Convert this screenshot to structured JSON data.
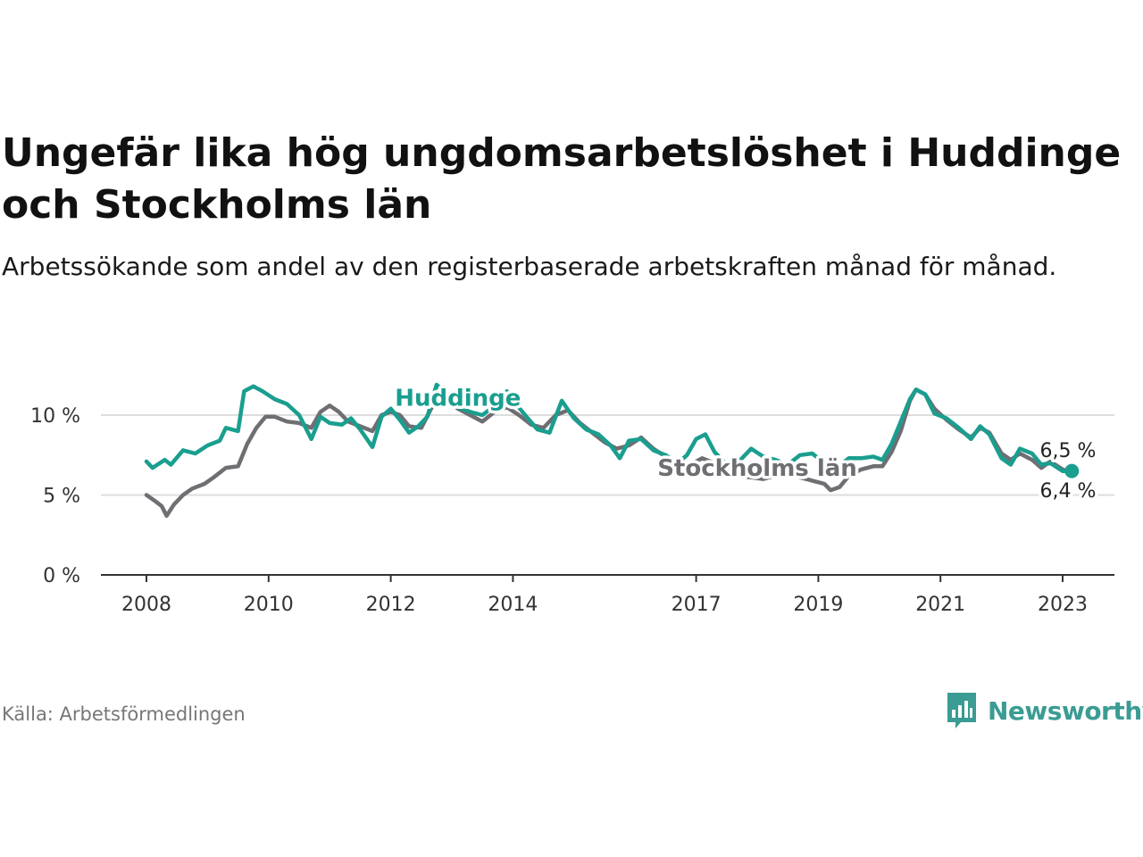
{
  "header": {
    "title": "Ungefär lika hög ungdomsarbetslöshet i Huddinge och Stockholms län",
    "subtitle": "Arbetssökande som andel av den registerbaserade arbetskraften månad för månad."
  },
  "footer": {
    "source": "Källa: Arbetsförmedlingen",
    "brand": "Newsworthy",
    "brand_icon": "bar-chart-icon"
  },
  "colors": {
    "huddinge": "#1a9e8f",
    "stockholm": "#6e6e73",
    "grid": "#dddddd",
    "axis": "#333333"
  },
  "chart_data": {
    "type": "line",
    "title": "Ungefär lika hög ungdomsarbetslöshet i Huddinge och Stockholms län",
    "xlabel": "",
    "ylabel": "",
    "xlim": [
      2008,
      2023.5
    ],
    "ylim": [
      0,
      12
    ],
    "x_ticks": [
      2008,
      2010,
      2012,
      2014,
      2017,
      2019,
      2021,
      2023
    ],
    "x_tick_labels": [
      "2008",
      "2010",
      "2012",
      "2014",
      "2017",
      "2019",
      "2021",
      "2023"
    ],
    "y_ticks": [
      0,
      5,
      10
    ],
    "y_tick_labels": [
      "0 %",
      "5 %",
      "10 %"
    ],
    "grid": true,
    "legend": "inline labels",
    "series": [
      {
        "name": "Huddinge",
        "label_at": [
          2013.1,
          10.6
        ],
        "end_label": "6,5 %",
        "points": [
          [
            2008.0,
            7.1
          ],
          [
            2008.1,
            6.7
          ],
          [
            2008.3,
            7.2
          ],
          [
            2008.4,
            6.9
          ],
          [
            2008.6,
            7.8
          ],
          [
            2008.8,
            7.6
          ],
          [
            2009.0,
            8.1
          ],
          [
            2009.2,
            8.4
          ],
          [
            2009.3,
            9.2
          ],
          [
            2009.5,
            9.0
          ],
          [
            2009.6,
            11.5
          ],
          [
            2009.75,
            11.8
          ],
          [
            2009.9,
            11.5
          ],
          [
            2010.1,
            11.0
          ],
          [
            2010.3,
            10.7
          ],
          [
            2010.5,
            10.0
          ],
          [
            2010.7,
            8.5
          ],
          [
            2010.85,
            9.9
          ],
          [
            2011.0,
            9.5
          ],
          [
            2011.2,
            9.4
          ],
          [
            2011.35,
            9.8
          ],
          [
            2011.5,
            9.1
          ],
          [
            2011.7,
            8.0
          ],
          [
            2011.85,
            9.9
          ],
          [
            2012.0,
            10.4
          ],
          [
            2012.15,
            9.7
          ],
          [
            2012.3,
            8.9
          ],
          [
            2012.45,
            9.3
          ],
          [
            2012.6,
            9.9
          ],
          [
            2012.75,
            11.9
          ],
          [
            2012.9,
            11.4
          ],
          [
            2013.1,
            10.5
          ],
          [
            2013.3,
            10.2
          ],
          [
            2013.5,
            10.0
          ],
          [
            2013.7,
            10.6
          ],
          [
            2013.9,
            11.5
          ],
          [
            2014.05,
            10.7
          ],
          [
            2014.2,
            10.0
          ],
          [
            2014.4,
            9.1
          ],
          [
            2014.6,
            8.9
          ],
          [
            2014.8,
            10.9
          ],
          [
            2015.0,
            9.8
          ],
          [
            2015.2,
            9.1
          ],
          [
            2015.4,
            8.8
          ],
          [
            2015.6,
            8.1
          ],
          [
            2015.75,
            7.3
          ],
          [
            2015.9,
            8.4
          ],
          [
            2016.1,
            8.5
          ],
          [
            2016.3,
            7.8
          ],
          [
            2016.5,
            7.5
          ],
          [
            2016.7,
            7.0
          ],
          [
            2016.85,
            7.5
          ],
          [
            2017.0,
            8.5
          ],
          [
            2017.15,
            8.8
          ],
          [
            2017.3,
            7.7
          ],
          [
            2017.5,
            6.9
          ],
          [
            2017.7,
            7.1
          ],
          [
            2017.9,
            7.9
          ],
          [
            2018.1,
            7.4
          ],
          [
            2018.3,
            7.2
          ],
          [
            2018.5,
            6.9
          ],
          [
            2018.7,
            7.5
          ],
          [
            2018.9,
            7.6
          ],
          [
            2019.1,
            7.0
          ],
          [
            2019.3,
            6.7
          ],
          [
            2019.5,
            7.3
          ],
          [
            2019.7,
            7.3
          ],
          [
            2019.9,
            7.4
          ],
          [
            2020.05,
            7.2
          ],
          [
            2020.2,
            8.2
          ],
          [
            2020.35,
            9.6
          ],
          [
            2020.5,
            11.0
          ],
          [
            2020.6,
            11.6
          ],
          [
            2020.75,
            11.3
          ],
          [
            2020.9,
            10.1
          ],
          [
            2021.1,
            9.8
          ],
          [
            2021.3,
            9.2
          ],
          [
            2021.5,
            8.5
          ],
          [
            2021.65,
            9.3
          ],
          [
            2021.8,
            8.8
          ],
          [
            2022.0,
            7.3
          ],
          [
            2022.15,
            6.9
          ],
          [
            2022.3,
            7.9
          ],
          [
            2022.5,
            7.6
          ],
          [
            2022.65,
            6.9
          ],
          [
            2022.8,
            7.0
          ],
          [
            2023.0,
            6.5
          ],
          [
            2023.15,
            6.5
          ]
        ]
      },
      {
        "name": "Stockholms län",
        "label_at": [
          2018.0,
          6.2
        ],
        "end_label": "6,4 %",
        "points": [
          [
            2008.0,
            5.0
          ],
          [
            2008.15,
            4.6
          ],
          [
            2008.25,
            4.3
          ],
          [
            2008.33,
            3.7
          ],
          [
            2008.45,
            4.4
          ],
          [
            2008.6,
            5.0
          ],
          [
            2008.75,
            5.4
          ],
          [
            2008.95,
            5.7
          ],
          [
            2009.1,
            6.1
          ],
          [
            2009.3,
            6.7
          ],
          [
            2009.5,
            6.8
          ],
          [
            2009.65,
            8.2
          ],
          [
            2009.8,
            9.2
          ],
          [
            2009.95,
            9.9
          ],
          [
            2010.1,
            9.9
          ],
          [
            2010.3,
            9.6
          ],
          [
            2010.5,
            9.5
          ],
          [
            2010.7,
            9.2
          ],
          [
            2010.85,
            10.2
          ],
          [
            2011.0,
            10.6
          ],
          [
            2011.15,
            10.2
          ],
          [
            2011.3,
            9.6
          ],
          [
            2011.5,
            9.3
          ],
          [
            2011.7,
            9.0
          ],
          [
            2011.85,
            10.0
          ],
          [
            2012.0,
            10.2
          ],
          [
            2012.15,
            10.0
          ],
          [
            2012.3,
            9.3
          ],
          [
            2012.5,
            9.2
          ],
          [
            2012.7,
            10.7
          ],
          [
            2012.9,
            10.9
          ],
          [
            2013.1,
            10.4
          ],
          [
            2013.3,
            10.0
          ],
          [
            2013.5,
            9.6
          ],
          [
            2013.7,
            10.2
          ],
          [
            2013.9,
            10.5
          ],
          [
            2014.1,
            10.0
          ],
          [
            2014.3,
            9.4
          ],
          [
            2014.5,
            9.2
          ],
          [
            2014.7,
            10.0
          ],
          [
            2014.9,
            10.3
          ],
          [
            2015.1,
            9.5
          ],
          [
            2015.3,
            8.9
          ],
          [
            2015.5,
            8.3
          ],
          [
            2015.7,
            7.9
          ],
          [
            2015.9,
            8.1
          ],
          [
            2016.1,
            8.6
          ],
          [
            2016.3,
            7.9
          ],
          [
            2016.5,
            7.4
          ],
          [
            2016.7,
            7.0
          ],
          [
            2016.9,
            6.9
          ],
          [
            2017.1,
            7.3
          ],
          [
            2017.3,
            7.0
          ],
          [
            2017.5,
            6.6
          ],
          [
            2017.7,
            6.2
          ],
          [
            2017.9,
            6.1
          ],
          [
            2018.1,
            6.0
          ],
          [
            2018.3,
            6.2
          ],
          [
            2018.5,
            6.4
          ],
          [
            2018.7,
            6.1
          ],
          [
            2018.9,
            5.9
          ],
          [
            2019.1,
            5.7
          ],
          [
            2019.2,
            5.3
          ],
          [
            2019.35,
            5.5
          ],
          [
            2019.5,
            6.2
          ],
          [
            2019.7,
            6.6
          ],
          [
            2019.9,
            6.8
          ],
          [
            2020.05,
            6.8
          ],
          [
            2020.2,
            7.7
          ],
          [
            2020.35,
            9.0
          ],
          [
            2020.5,
            10.9
          ],
          [
            2020.6,
            11.6
          ],
          [
            2020.75,
            11.3
          ],
          [
            2020.9,
            10.4
          ],
          [
            2021.1,
            9.7
          ],
          [
            2021.3,
            9.1
          ],
          [
            2021.5,
            8.6
          ],
          [
            2021.65,
            9.2
          ],
          [
            2021.8,
            8.9
          ],
          [
            2022.0,
            7.6
          ],
          [
            2022.15,
            7.2
          ],
          [
            2022.3,
            7.6
          ],
          [
            2022.5,
            7.2
          ],
          [
            2022.65,
            6.7
          ],
          [
            2022.8,
            7.1
          ],
          [
            2023.0,
            6.6
          ],
          [
            2023.15,
            6.4
          ]
        ]
      }
    ]
  }
}
